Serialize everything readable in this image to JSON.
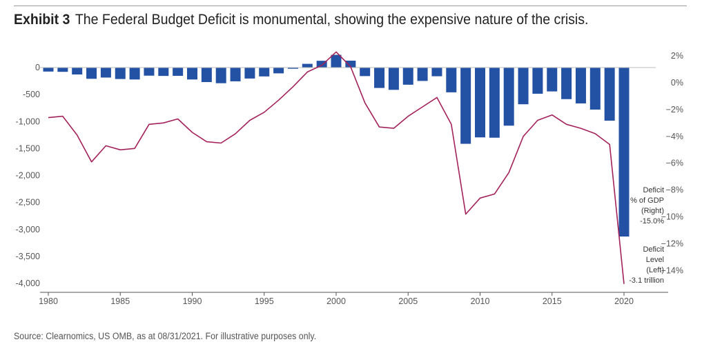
{
  "header": {
    "exhibit_label": "Exhibit 3",
    "title": "The Federal Budget Deficit is monumental, showing the expensive nature of the crisis."
  },
  "footer": {
    "source": "Source: Clearnomics, US OMB, as at 08/31/2021. For illustrative purposes only."
  },
  "chart_data": {
    "type": "bar",
    "title": "The Federal Budget Deficit is monumental, showing the expensive nature of the crisis.",
    "x": [
      1980,
      1981,
      1982,
      1983,
      1984,
      1985,
      1986,
      1987,
      1988,
      1989,
      1990,
      1991,
      1992,
      1993,
      1994,
      1995,
      1996,
      1997,
      1998,
      1999,
      2000,
      2001,
      2002,
      2003,
      2004,
      2005,
      2006,
      2007,
      2008,
      2009,
      2010,
      2011,
      2012,
      2013,
      2014,
      2015,
      2016,
      2017,
      2018,
      2019,
      2020
    ],
    "x_ticks": [
      1980,
      1985,
      1990,
      1995,
      2000,
      2005,
      2010,
      2015,
      2020
    ],
    "left_axis": {
      "ylim": [
        -4000,
        0
      ],
      "ticks": [
        0,
        -500,
        -1000,
        -1500,
        -2000,
        -2500,
        -3000,
        -3500,
        -4000
      ],
      "tick_labels": [
        "0",
        "-500",
        "-1,000",
        "-1,500",
        "-2,000",
        "-2,500",
        "-3,000",
        "-3,500",
        "-4,000"
      ]
    },
    "right_axis": {
      "ylim": [
        -15,
        2
      ],
      "ticks": [
        2,
        0,
        -2,
        -4,
        -6,
        -8,
        -10,
        -12,
        -14
      ],
      "tick_labels": [
        "2%",
        "0%",
        "−2%",
        "−4%",
        "−6%",
        "−8%",
        "−10%",
        "−12%",
        "−14%"
      ]
    },
    "series": [
      {
        "name": "Deficit Level (Left)",
        "type": "bar",
        "axis": "left",
        "color": "#2352a4",
        "values": [
          -74,
          -79,
          -128,
          -208,
          -185,
          -212,
          -221,
          -150,
          -155,
          -153,
          -221,
          -269,
          -290,
          -255,
          -203,
          -164,
          -107,
          -22,
          69,
          126,
          236,
          128,
          -158,
          -378,
          -413,
          -318,
          -248,
          -161,
          -459,
          -1413,
          -1294,
          -1300,
          -1077,
          -680,
          -485,
          -442,
          -585,
          -665,
          -779,
          -984,
          -3132
        ]
      },
      {
        "name": "Deficit % of GDP (Right)",
        "type": "line",
        "axis": "right",
        "color": "#a3215a",
        "values": [
          -2.6,
          -2.5,
          -3.9,
          -5.9,
          -4.7,
          -5.0,
          -4.9,
          -3.1,
          -3.0,
          -2.7,
          -3.7,
          -4.4,
          -4.5,
          -3.8,
          -2.8,
          -2.2,
          -1.3,
          -0.3,
          0.8,
          1.3,
          2.3,
          1.2,
          -1.5,
          -3.3,
          -3.4,
          -2.5,
          -1.8,
          -1.1,
          -3.1,
          -9.8,
          -8.6,
          -8.3,
          -6.7,
          -4.0,
          -2.8,
          -2.4,
          -3.1,
          -3.4,
          -3.8,
          -4.6,
          -15.0
        ]
      }
    ],
    "annotations": [
      {
        "lines": [
          "Deficit",
          "% of GDP",
          "(Right)",
          "-15.0%"
        ]
      },
      {
        "lines": [
          "Deficit",
          "Level",
          "(Left)",
          "-3.1 trillion"
        ]
      }
    ]
  }
}
